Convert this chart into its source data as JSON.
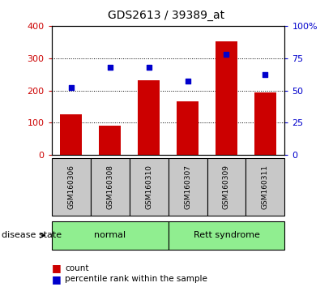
{
  "title": "GDS2613 / 39389_at",
  "samples": [
    "GSM160306",
    "GSM160308",
    "GSM160310",
    "GSM160307",
    "GSM160309",
    "GSM160311"
  ],
  "counts": [
    125,
    90,
    232,
    165,
    352,
    195
  ],
  "percentiles": [
    52,
    68,
    68,
    57,
    78,
    62
  ],
  "bar_color": "#cc0000",
  "scatter_color": "#0000cc",
  "ylim_left": [
    0,
    400
  ],
  "ylim_right": [
    0,
    100
  ],
  "yticks_left": [
    0,
    100,
    200,
    300,
    400
  ],
  "yticks_right": [
    0,
    25,
    50,
    75,
    100
  ],
  "yticklabels_right": [
    "0",
    "25",
    "50",
    "75",
    "100%"
  ],
  "groups": [
    {
      "label": "normal",
      "indices": [
        0,
        1,
        2
      ],
      "color": "#90ee90"
    },
    {
      "label": "Rett syndrome",
      "indices": [
        3,
        4,
        5
      ],
      "color": "#90ee90"
    }
  ],
  "group_box_color": "#c8c8c8",
  "disease_state_label": "disease state",
  "legend_count_label": "count",
  "legend_percentile_label": "percentile rank within the sample",
  "title_fontsize": 10,
  "tick_fontsize": 8,
  "sample_fontsize": 6.5,
  "group_fontsize": 8,
  "legend_fontsize": 7.5,
  "disease_fontsize": 8
}
